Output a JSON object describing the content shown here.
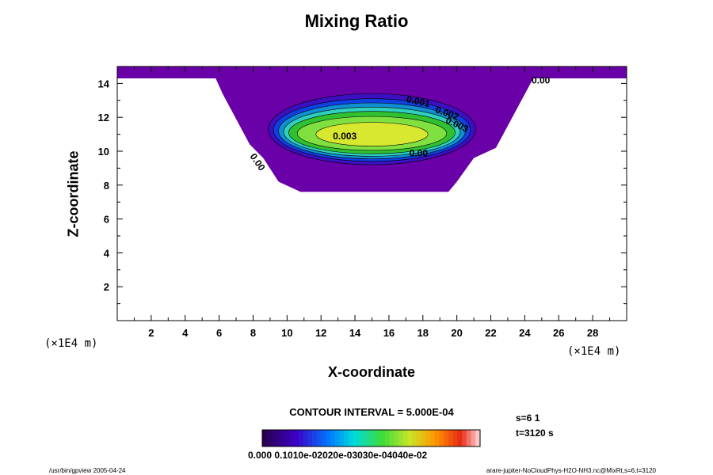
{
  "chart_data": {
    "type": "contour",
    "title": "Mixing Ratio",
    "xlabel": "X-coordinate",
    "ylabel": "Z-coordinate",
    "x_unit": "(×1E4 m)",
    "y_unit": "(×1E4 m)",
    "xlim": [
      0,
      30
    ],
    "ylim": [
      0,
      15
    ],
    "xticks": [
      "2",
      "4",
      "6",
      "8",
      "10",
      "12",
      "14",
      "16",
      "18",
      "20",
      "22",
      "24",
      "26",
      "28"
    ],
    "yticks": [
      "2",
      "4",
      "6",
      "8",
      "10",
      "12",
      "14"
    ],
    "contour_interval": "CONTOUR INTERVAL = 5.000E-04",
    "contour_labels": [
      "0.00",
      "0.001",
      "0.002",
      "0.003",
      "0.003",
      "0.00",
      "0.00"
    ],
    "colorbar": {
      "label": "0.000 0.1010e-02020e-03030e-04040e-02",
      "min": 0.0,
      "max": 0.0045
    },
    "info": {
      "s": "s=6 1",
      "t": "t=3120 s"
    },
    "colors": {
      "outer": "#6a00a8",
      "core": "#d8e830",
      "mid": "#30c030",
      "rim": "#1090d0"
    }
  },
  "footer": {
    "left": "/usr/bin/gpview 2005-04-24",
    "right": "arare-jupiter-NoCloudPhys-H2O-NH3.nc@MixRt,s=6,t=3120"
  }
}
